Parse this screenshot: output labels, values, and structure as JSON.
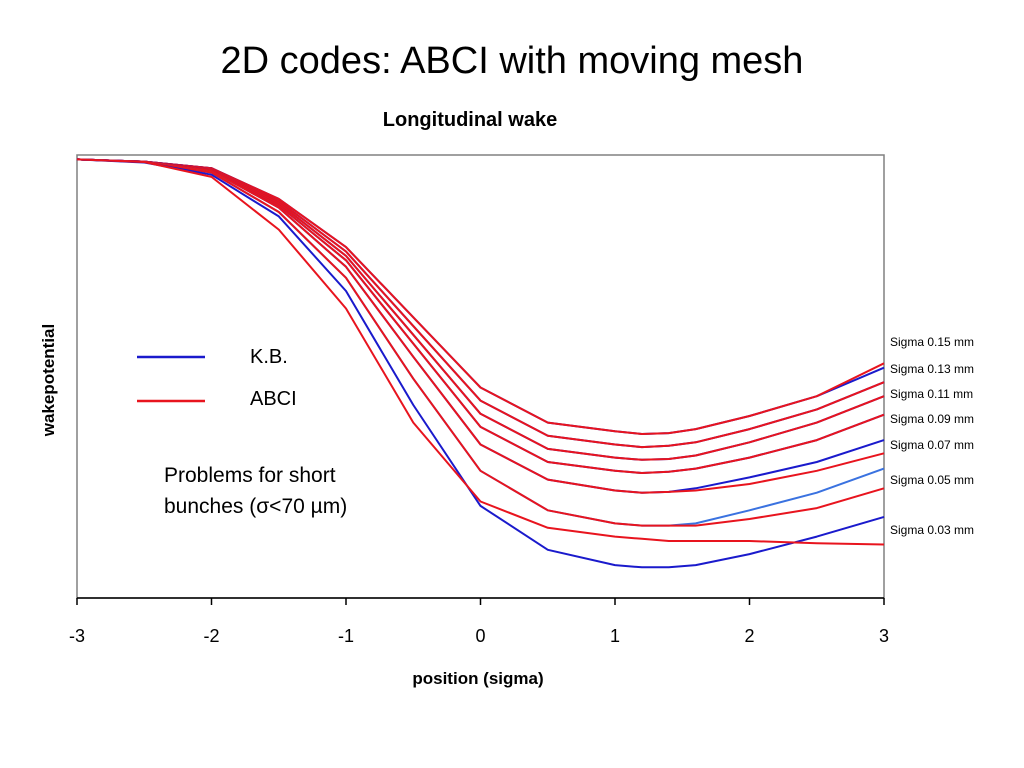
{
  "slide": {
    "title": "2D codes: ABCI with moving mesh"
  },
  "chart_data": {
    "type": "line",
    "title": "Longitudinal wake",
    "xlabel": "position (sigma)",
    "ylabel": "wakepotential",
    "xlim": [
      -3,
      3
    ],
    "ylim": [
      -1,
      0.01
    ],
    "xticks": [
      "-3",
      "-2",
      "-1",
      "0",
      "1",
      "2",
      "3"
    ],
    "grid": false,
    "legend": {
      "placement": "center-left",
      "entries": [
        {
          "label": "K.B.",
          "color": "#1a1acc"
        },
        {
          "label": "ABCI",
          "color": "#e8141e"
        }
      ]
    },
    "annotation": "Problems for short bunches (σ<70 µm)",
    "series": [
      {
        "name": "Sigma 0.15 mm",
        "color_kb": "#1a1acc",
        "color_abci": "#e8141e",
        "kb_x": [
          -3,
          -2.5,
          -2,
          -1.5,
          -1,
          -0.5,
          0,
          0.5,
          1,
          1.2,
          1.4,
          1.6,
          2,
          2.5,
          3
        ],
        "kb_y": [
          0,
          -0.005,
          -0.02,
          -0.09,
          -0.2,
          -0.36,
          -0.52,
          -0.6,
          -0.62,
          -0.626,
          -0.624,
          -0.615,
          -0.585,
          -0.54,
          -0.475
        ],
        "abci_y": [
          0,
          -0.005,
          -0.02,
          -0.09,
          -0.2,
          -0.36,
          -0.52,
          -0.6,
          -0.62,
          -0.626,
          -0.624,
          -0.615,
          -0.585,
          -0.54,
          -0.465
        ]
      },
      {
        "name": "Sigma 0.13 mm",
        "color_kb": "#1a1acc",
        "color_abci": "#e8141e",
        "kb_x": [
          -3,
          -2.5,
          -2,
          -1.5,
          -1,
          -0.5,
          0,
          0.5,
          1,
          1.2,
          1.4,
          1.6,
          2,
          2.5,
          3
        ],
        "kb_y": [
          0,
          -0.005,
          -0.02,
          -0.095,
          -0.21,
          -0.38,
          -0.55,
          -0.63,
          -0.65,
          -0.656,
          -0.653,
          -0.645,
          -0.615,
          -0.57,
          -0.508
        ],
        "abci_y": [
          0,
          -0.005,
          -0.02,
          -0.095,
          -0.21,
          -0.38,
          -0.55,
          -0.63,
          -0.65,
          -0.656,
          -0.653,
          -0.645,
          -0.615,
          -0.57,
          -0.508
        ]
      },
      {
        "name": "Sigma 0.11 mm",
        "color_kb": "#1a1acc",
        "color_abci": "#e8141e",
        "kb_x": [
          -3,
          -2.5,
          -2,
          -1.5,
          -1,
          -0.5,
          0,
          0.5,
          1,
          1.2,
          1.4,
          1.6,
          2,
          2.5,
          3
        ],
        "kb_y": [
          0,
          -0.005,
          -0.022,
          -0.1,
          -0.22,
          -0.4,
          -0.58,
          -0.66,
          -0.68,
          -0.685,
          -0.683,
          -0.675,
          -0.645,
          -0.6,
          -0.54
        ],
        "abci_y": [
          0,
          -0.005,
          -0.022,
          -0.1,
          -0.22,
          -0.4,
          -0.58,
          -0.66,
          -0.68,
          -0.685,
          -0.683,
          -0.675,
          -0.645,
          -0.6,
          -0.54
        ]
      },
      {
        "name": "Sigma 0.09 mm",
        "color_kb": "#1a1acc",
        "color_abci": "#e8141e",
        "kb_x": [
          -3,
          -2.5,
          -2,
          -1.5,
          -1,
          -0.5,
          0,
          0.5,
          1,
          1.2,
          1.4,
          1.6,
          2,
          2.5,
          3
        ],
        "kb_y": [
          0,
          -0.005,
          -0.024,
          -0.105,
          -0.23,
          -0.42,
          -0.61,
          -0.69,
          -0.71,
          -0.715,
          -0.712,
          -0.705,
          -0.68,
          -0.64,
          -0.582
        ],
        "abci_y": [
          0,
          -0.005,
          -0.024,
          -0.105,
          -0.23,
          -0.42,
          -0.61,
          -0.69,
          -0.71,
          -0.715,
          -0.712,
          -0.705,
          -0.68,
          -0.64,
          -0.582
        ]
      },
      {
        "name": "Sigma 0.07 mm",
        "color_kb": "#1a1acc",
        "color_abci": "#e8141e",
        "kb_x": [
          -3,
          -2.5,
          -2,
          -1.5,
          -1,
          -0.5,
          0,
          0.5,
          1,
          1.2,
          1.4,
          1.6,
          2,
          2.5,
          3
        ],
        "kb_y": [
          0,
          -0.005,
          -0.026,
          -0.11,
          -0.245,
          -0.45,
          -0.65,
          -0.73,
          -0.755,
          -0.76,
          -0.758,
          -0.75,
          -0.725,
          -0.69,
          -0.64
        ],
        "abci_y": [
          0,
          -0.005,
          -0.026,
          -0.11,
          -0.245,
          -0.45,
          -0.65,
          -0.73,
          -0.755,
          -0.76,
          -0.758,
          -0.755,
          -0.74,
          -0.71,
          -0.67
        ]
      },
      {
        "name": "Sigma 0.05 mm",
        "color_kb": "#3a72e0",
        "color_abci": "#e8141e",
        "kb_x": [
          -3,
          -2.5,
          -2,
          -1.5,
          -1,
          -0.5,
          0,
          0.5,
          1,
          1.2,
          1.4,
          1.6,
          2,
          2.5,
          3
        ],
        "kb_y": [
          0,
          -0.006,
          -0.03,
          -0.12,
          -0.27,
          -0.5,
          -0.71,
          -0.8,
          -0.83,
          -0.835,
          -0.835,
          -0.83,
          -0.8,
          -0.76,
          -0.705
        ],
        "abci_y": [
          0,
          -0.006,
          -0.03,
          -0.12,
          -0.27,
          -0.5,
          -0.71,
          -0.8,
          -0.83,
          -0.835,
          -0.835,
          -0.835,
          -0.82,
          -0.795,
          -0.75
        ]
      },
      {
        "name": "Sigma 0.03 mm",
        "color_kb": "#1a1acc",
        "color_abci": "#e8141e",
        "kb_x": [
          -3,
          -2.5,
          -2,
          -1.5,
          -1,
          -0.5,
          0,
          0.5,
          1,
          1.2,
          1.4,
          1.6,
          2,
          2.5,
          3
        ],
        "kb_y": [
          0,
          -0.007,
          -0.035,
          -0.13,
          -0.3,
          -0.56,
          -0.79,
          -0.89,
          -0.925,
          -0.93,
          -0.93,
          -0.925,
          -0.9,
          -0.86,
          -0.815
        ],
        "abci_y": [
          0,
          -0.006,
          -0.04,
          -0.16,
          -0.34,
          -0.6,
          -0.78,
          -0.84,
          -0.86,
          -0.865,
          -0.87,
          -0.87,
          -0.87,
          -0.875,
          -0.878
        ]
      }
    ]
  }
}
